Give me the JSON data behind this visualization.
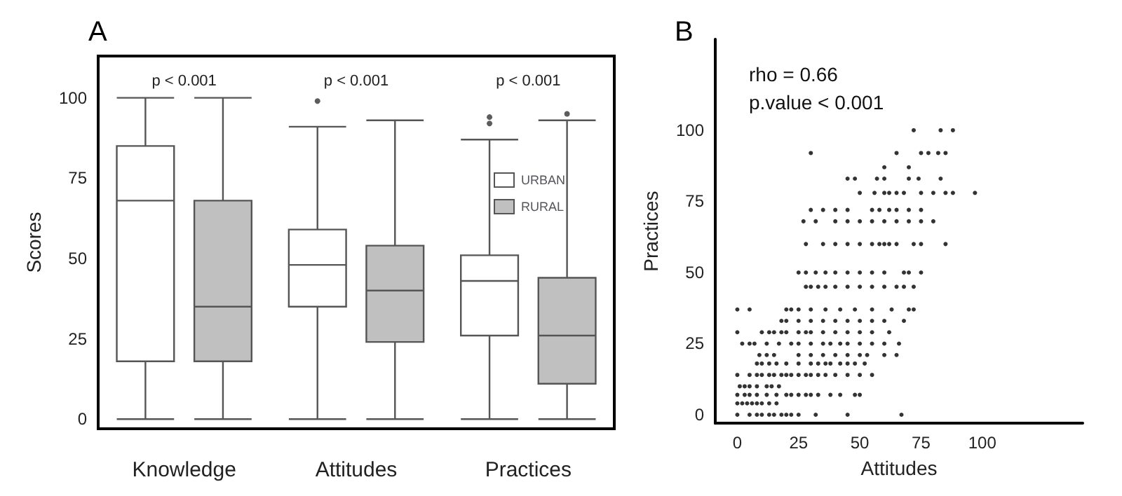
{
  "chart_data": [
    {
      "type": "box",
      "title": "A",
      "ylabel": "Scores",
      "categories": [
        "Knowledge",
        "Attitudes",
        "Practices"
      ],
      "ylim": [
        -3,
        113
      ],
      "yticks": [
        0,
        25,
        50,
        75,
        100
      ],
      "grid": false,
      "legend": "right",
      "series": [
        {
          "name": "URBAN",
          "color": "#ffffff",
          "boxes": [
            {
              "low": 0,
              "q1": 18,
              "median": 68,
              "q3": 85,
              "high": 100
            },
            {
              "low": 0,
              "q1": 35,
              "median": 48,
              "q3": 59,
              "high": 91,
              "outliers": [
                99
              ]
            },
            {
              "low": 0,
              "q1": 26,
              "median": 43,
              "q3": 51,
              "high": 87,
              "outliers": [
                92,
                94
              ]
            }
          ]
        },
        {
          "name": "RURAL",
          "color": "#c0c0c0",
          "boxes": [
            {
              "low": 0,
              "q1": 18,
              "median": 35,
              "q3": 68,
              "high": 100
            },
            {
              "low": 0,
              "q1": 24,
              "median": 40,
              "q3": 54,
              "high": 93
            },
            {
              "low": 0,
              "q1": 11,
              "median": 26,
              "q3": 44,
              "high": 93,
              "outliers": [
                95
              ]
            }
          ]
        }
      ],
      "annotations": [
        "p < 0.001",
        "p < 0.001",
        "p < 0.001"
      ]
    },
    {
      "type": "scatter",
      "title": "B",
      "xlabel": "Attitudes",
      "ylabel": "Practices",
      "xlim": [
        -9,
        141
      ],
      "ylim": [
        -3,
        132
      ],
      "xticks": [
        0,
        25,
        50,
        75,
        100
      ],
      "yticks": [
        0,
        25,
        50,
        75,
        100
      ],
      "grid": false,
      "legend": false,
      "marker": "circle",
      "series": [
        {
          "color": "#000000",
          "x": [
            0,
            5,
            8,
            10,
            13,
            15,
            18,
            20,
            22,
            25,
            32,
            45,
            67,
            0,
            2,
            4,
            6,
            8,
            10,
            13,
            16,
            0,
            3,
            5,
            8,
            12,
            16,
            20,
            22,
            25,
            28,
            30,
            33,
            38,
            42,
            48,
            50,
            1,
            3,
            5,
            8,
            12,
            14,
            17,
            0,
            5,
            8,
            10,
            13,
            15,
            18,
            20,
            22,
            25,
            28,
            30,
            33,
            36,
            40,
            45,
            50,
            55,
            8,
            10,
            13,
            16,
            20,
            25,
            30,
            33,
            36,
            38,
            42,
            45,
            48,
            52,
            9,
            12,
            15,
            25,
            30,
            35,
            40,
            45,
            50,
            53,
            60,
            65,
            2,
            5,
            7,
            12,
            17,
            22,
            25,
            30,
            35,
            38,
            42,
            45,
            50,
            55,
            60,
            66,
            0,
            10,
            13,
            15,
            18,
            20,
            25,
            28,
            30,
            35,
            40,
            45,
            50,
            55,
            62,
            18,
            20,
            25,
            30,
            35,
            40,
            45,
            50,
            55,
            60,
            68,
            0,
            5,
            20,
            22,
            25,
            30,
            36,
            42,
            48,
            55,
            63,
            70,
            72,
            28,
            30,
            33,
            36,
            40,
            45,
            50,
            55,
            60,
            65,
            68,
            72,
            25,
            28,
            32,
            36,
            40,
            45,
            50,
            55,
            60,
            68,
            70,
            75,
            28,
            35,
            40,
            45,
            50,
            55,
            58,
            60,
            62,
            65,
            72,
            75,
            85,
            27,
            32,
            40,
            45,
            50,
            55,
            60,
            65,
            70,
            75,
            80,
            30,
            35,
            40,
            45,
            55,
            58,
            62,
            65,
            70,
            75,
            50,
            56,
            60,
            62,
            65,
            68,
            75,
            80,
            85,
            88,
            97,
            45,
            48,
            57,
            60,
            70,
            74,
            83,
            60,
            70,
            30,
            65,
            75,
            78,
            82,
            85,
            72,
            83,
            88
          ],
          "values": [
            0,
            0,
            0,
            0,
            0,
            0,
            0,
            0,
            0,
            0,
            0,
            0,
            0,
            4,
            4,
            4,
            4,
            4,
            4,
            4,
            4,
            7,
            7,
            7,
            7,
            7,
            7,
            7,
            7,
            7,
            7,
            7,
            7,
            7,
            7,
            7,
            7,
            10,
            10,
            10,
            10,
            10,
            10,
            10,
            14,
            14,
            14,
            14,
            14,
            14,
            14,
            14,
            14,
            14,
            14,
            14,
            14,
            14,
            14,
            14,
            14,
            14,
            18,
            18,
            18,
            18,
            18,
            18,
            18,
            18,
            18,
            18,
            18,
            18,
            18,
            18,
            21,
            21,
            21,
            21,
            21,
            21,
            21,
            21,
            21,
            21,
            21,
            21,
            25,
            25,
            25,
            25,
            25,
            25,
            25,
            25,
            25,
            25,
            25,
            25,
            25,
            25,
            25,
            25,
            29,
            29,
            29,
            29,
            29,
            29,
            29,
            29,
            29,
            29,
            29,
            29,
            29,
            29,
            29,
            33,
            33,
            33,
            33,
            33,
            33,
            33,
            33,
            33,
            33,
            33,
            37,
            37,
            37,
            37,
            37,
            37,
            37,
            37,
            37,
            37,
            37,
            37,
            37,
            45,
            45,
            45,
            45,
            45,
            45,
            45,
            45,
            45,
            45,
            45,
            45,
            50,
            50,
            50,
            50,
            50,
            50,
            50,
            50,
            50,
            50,
            50,
            50,
            60,
            60,
            60,
            60,
            60,
            60,
            60,
            60,
            60,
            60,
            60,
            60,
            60,
            68,
            68,
            68,
            68,
            68,
            68,
            68,
            68,
            68,
            68,
            68,
            72,
            72,
            72,
            72,
            72,
            72,
            72,
            72,
            72,
            72,
            78,
            78,
            78,
            78,
            78,
            78,
            78,
            78,
            78,
            78,
            78,
            83,
            83,
            83,
            83,
            83,
            83,
            83,
            87,
            87,
            92,
            92,
            92,
            92,
            92,
            92,
            100,
            100,
            100
          ]
        }
      ],
      "annotations": [
        "rho = 0.66",
        "p.value < 0.001"
      ]
    }
  ]
}
